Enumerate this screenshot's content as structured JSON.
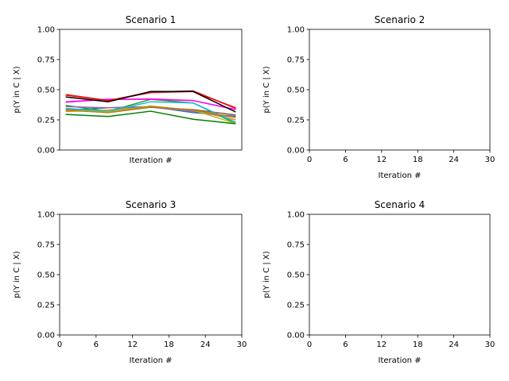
{
  "chart_data": [
    {
      "type": "line",
      "title": "Scenario 1",
      "xlabel": "Iteration #",
      "ylabel": "p(Y in C | X)",
      "ylim": [
        0,
        1
      ],
      "xlim": [
        0,
        30
      ],
      "yticks": [
        "0.00",
        "0.25",
        "0.50",
        "0.75",
        "1.00"
      ],
      "xticks": [],
      "grid": false,
      "x": [
        1,
        8,
        15,
        22,
        29
      ],
      "series": [
        {
          "color": "#1f77b4",
          "values": [
            0.33,
            0.35,
            0.36,
            0.31,
            0.28
          ]
        },
        {
          "color": "#ff7f0e",
          "values": [
            0.32,
            0.33,
            0.36,
            0.33,
            0.25
          ]
        },
        {
          "color": "#2ca02c",
          "values": [
            0.37,
            0.32,
            0.42,
            0.39,
            0.22
          ]
        },
        {
          "color": "#d62728",
          "values": [
            0.46,
            0.41,
            0.475,
            0.485,
            0.35
          ]
        },
        {
          "color": "#9467bd",
          "values": [
            0.36,
            0.35,
            0.355,
            0.32,
            0.27
          ]
        },
        {
          "color": "#8c564b",
          "values": [
            0.335,
            0.31,
            0.355,
            0.335,
            0.29
          ]
        },
        {
          "color": "#e377c2",
          "values": [
            0.395,
            0.42,
            0.425,
            0.41,
            0.335
          ]
        },
        {
          "color": "#17becf",
          "values": [
            0.345,
            0.32,
            0.4,
            0.39,
            0.23
          ]
        },
        {
          "color": "#bcbd22",
          "values": [
            0.33,
            0.315,
            0.365,
            0.33,
            0.22
          ]
        },
        {
          "color": "#ff00ff",
          "values": [
            0.4,
            0.42,
            0.42,
            0.41,
            0.335
          ]
        },
        {
          "color": "#ff0000",
          "values": [
            0.455,
            0.41,
            0.48,
            0.49,
            0.345
          ]
        },
        {
          "color": "#b8860b",
          "values": [
            0.33,
            0.31,
            0.36,
            0.33,
            0.27
          ]
        },
        {
          "color": "#008000",
          "values": [
            0.295,
            0.278,
            0.322,
            0.255,
            0.218
          ]
        },
        {
          "color": "#000000",
          "values": [
            0.44,
            0.4,
            0.485,
            0.485,
            0.315
          ]
        }
      ]
    },
    {
      "type": "line",
      "title": "Scenario 2",
      "xlabel": "Iteration #",
      "ylabel": "p(Y in C | X)",
      "ylim": [
        0,
        1
      ],
      "xlim": [
        0,
        30
      ],
      "yticks": [
        "0.00",
        "0.25",
        "0.50",
        "0.75",
        "1.00"
      ],
      "xticks": [
        "0",
        "6",
        "12",
        "18",
        "24",
        "30"
      ],
      "grid": false,
      "x": [],
      "series": []
    },
    {
      "type": "line",
      "title": "Scenario 3",
      "xlabel": "Iteration #",
      "ylabel": "p(Y in C | X)",
      "ylim": [
        0,
        1
      ],
      "xlim": [
        0,
        30
      ],
      "yticks": [
        "0.00",
        "0.25",
        "0.50",
        "0.75",
        "1.00"
      ],
      "xticks": [
        "0",
        "6",
        "12",
        "18",
        "24",
        "30"
      ],
      "grid": false,
      "x": [],
      "series": []
    },
    {
      "type": "line",
      "title": "Scenario 4",
      "xlabel": "Iteration #",
      "ylabel": "p(Y in C | X)",
      "ylim": [
        0,
        1
      ],
      "xlim": [
        0,
        30
      ],
      "yticks": [
        "0.00",
        "0.25",
        "0.50",
        "0.75",
        "1.00"
      ],
      "xticks": [
        "0",
        "6",
        "12",
        "18",
        "24",
        "30"
      ],
      "grid": false,
      "x": [],
      "series": []
    }
  ]
}
